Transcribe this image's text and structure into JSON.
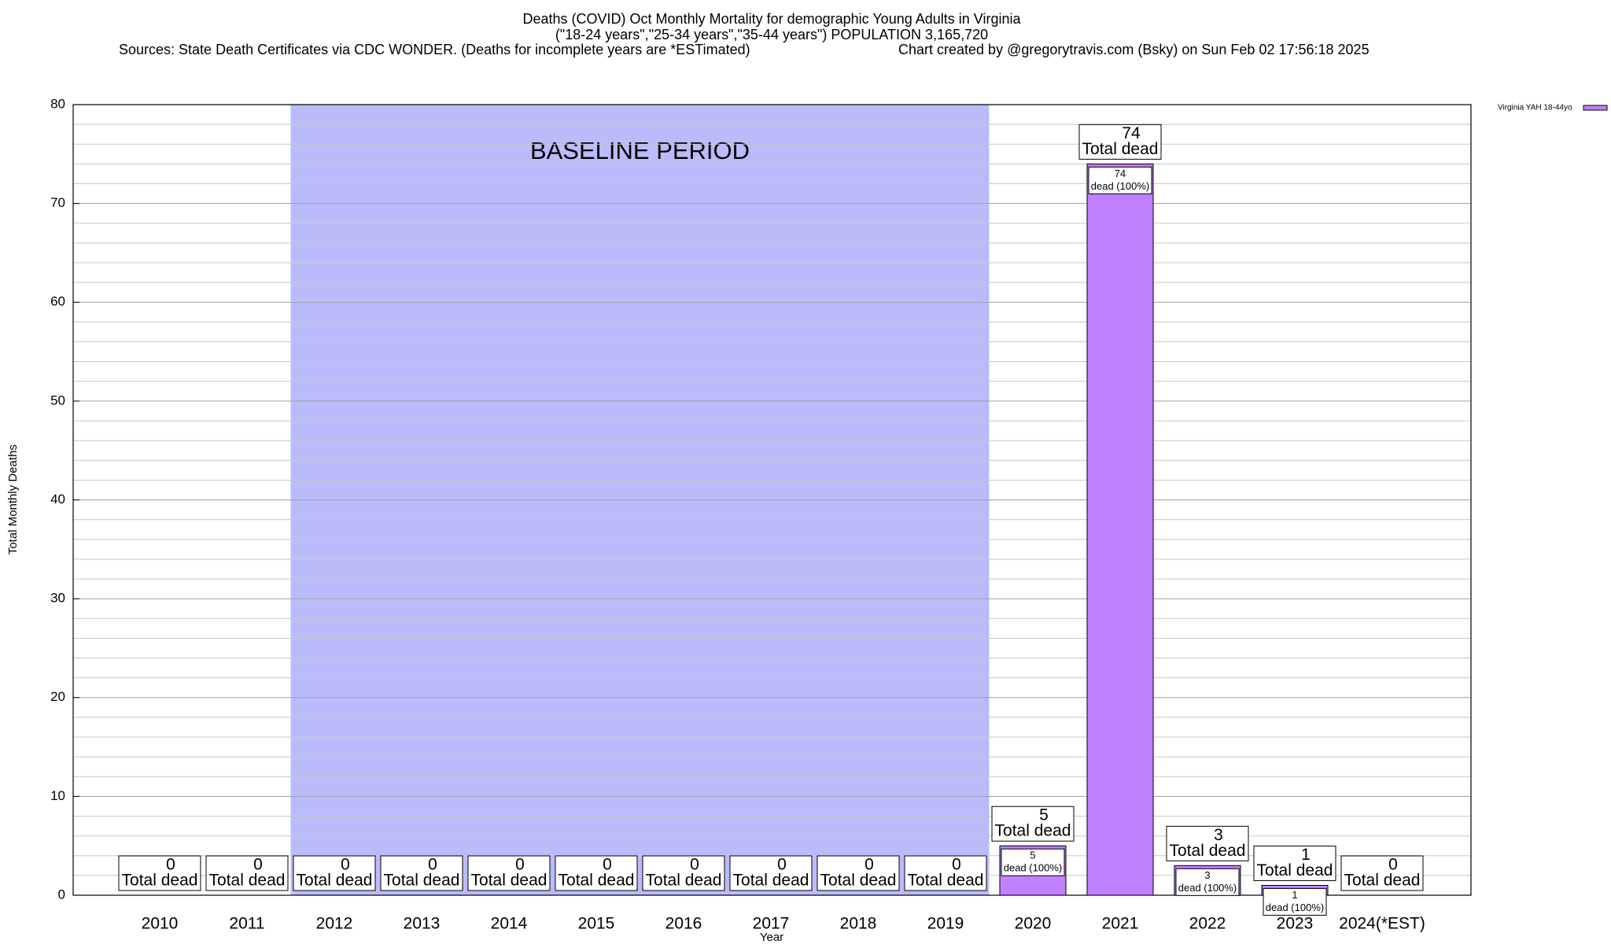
{
  "chart_data": {
    "type": "bar",
    "title": "Deaths (COVID) Oct Monthly Mortality for demographic Young Adults in Virginia",
    "subtitle": "(\"18-24 years\",\"25-34 years\",\"35-44 years\") POPULATION 3,165,720",
    "sources": "Sources: State Death Certificates via CDC WONDER. (Deaths for incomplete years are *ESTimated)",
    "credit": "Chart created by @gregorytravis.com (Bsky) on Sun Feb 02 17:56:18 2025",
    "x_label": "Year",
    "y_label": "Total Monthly Deaths",
    "categories": [
      "2010",
      "2011",
      "2012",
      "2013",
      "2014",
      "2015",
      "2016",
      "2017",
      "2018",
      "2019",
      "2020",
      "2021",
      "2022",
      "2023",
      "2024(*EST)"
    ],
    "series": [
      {
        "name": "Virginia YAH 18-44yo",
        "color": "#c080ff",
        "values": [
          0,
          0,
          0,
          0,
          0,
          0,
          0,
          0,
          0,
          0,
          5,
          74,
          3,
          1,
          0
        ]
      }
    ],
    "total_label": "Total dead",
    "inner_labels": [
      null,
      null,
      null,
      null,
      null,
      null,
      null,
      null,
      null,
      null,
      "dead (100%)",
      "dead (100%)",
      "dead (100%)",
      "dead (100%)",
      null
    ],
    "baseline": {
      "label": "BASELINE PERIOD",
      "start": "2012",
      "end": "2019",
      "color": "#bbbbfb"
    },
    "ylim": [
      0,
      80
    ],
    "yticks": [
      0,
      10,
      20,
      30,
      40,
      50,
      60,
      70,
      80
    ],
    "minor_yticks": [
      2,
      4,
      6,
      8,
      12,
      14,
      16,
      18,
      22,
      24,
      26,
      28,
      32,
      34,
      36,
      38,
      42,
      44,
      46,
      48,
      52,
      54,
      56,
      58,
      62,
      64,
      66,
      68,
      72,
      74,
      76,
      78
    ],
    "grid": true,
    "legend": "top-right"
  }
}
